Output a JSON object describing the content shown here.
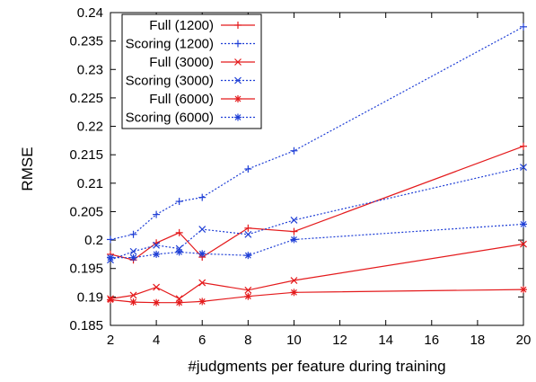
{
  "chart_data": {
    "type": "line",
    "title": "",
    "xlabel": "#judgments per feature during training",
    "ylabel": "RMSE",
    "xlim": [
      2,
      20
    ],
    "ylim": [
      0.185,
      0.24
    ],
    "xticks": [
      2,
      4,
      6,
      8,
      10,
      12,
      14,
      16,
      18,
      20
    ],
    "yticks": [
      0.185,
      0.19,
      0.195,
      0.2,
      0.205,
      0.21,
      0.215,
      0.22,
      0.225,
      0.23,
      0.235,
      0.24
    ],
    "grid": false,
    "legend_position": "top-left",
    "series": [
      {
        "name": "Full (1200)",
        "color": "#e41a1c",
        "dash": "solid",
        "marker": "plus",
        "x": [
          2,
          3,
          4,
          5,
          6,
          8,
          10,
          20
        ],
        "y": [
          0.1975,
          0.1965,
          0.1995,
          0.2013,
          0.197,
          0.2021,
          0.2015,
          0.2165
        ]
      },
      {
        "name": "Scoring (1200)",
        "color": "#1f3fd6",
        "dash": "dotted",
        "marker": "plus",
        "x": [
          2,
          3,
          4,
          5,
          6,
          8,
          10,
          20
        ],
        "y": [
          0.2001,
          0.201,
          0.2045,
          0.2068,
          0.2075,
          0.2125,
          0.2157,
          0.2375
        ]
      },
      {
        "name": "Full (3000)",
        "color": "#e41a1c",
        "dash": "solid",
        "marker": "x",
        "x": [
          2,
          3,
          4,
          5,
          6,
          8,
          10,
          20
        ],
        "y": [
          0.1897,
          0.1903,
          0.1917,
          0.1897,
          0.1925,
          0.1912,
          0.1929,
          0.1993
        ]
      },
      {
        "name": "Scoring (3000)",
        "color": "#1f3fd6",
        "dash": "dotted",
        "marker": "x",
        "x": [
          2,
          3,
          4,
          5,
          6,
          8,
          10,
          20
        ],
        "y": [
          0.1965,
          0.198,
          0.1991,
          0.1985,
          0.2019,
          0.201,
          0.2035,
          0.2128
        ]
      },
      {
        "name": "Full (6000)",
        "color": "#e41a1c",
        "dash": "solid",
        "marker": "star",
        "x": [
          2,
          3,
          4,
          5,
          6,
          8,
          10,
          20
        ],
        "y": [
          0.1895,
          0.1891,
          0.189,
          0.189,
          0.1892,
          0.1901,
          0.1908,
          0.1913
        ]
      },
      {
        "name": "Scoring (6000)",
        "color": "#1f3fd6",
        "dash": "dotted",
        "marker": "star",
        "x": [
          2,
          3,
          4,
          5,
          6,
          8,
          10,
          20
        ],
        "y": [
          0.1969,
          0.1969,
          0.1975,
          0.1979,
          0.1976,
          0.1973,
          0.2001,
          0.2028
        ]
      }
    ]
  }
}
